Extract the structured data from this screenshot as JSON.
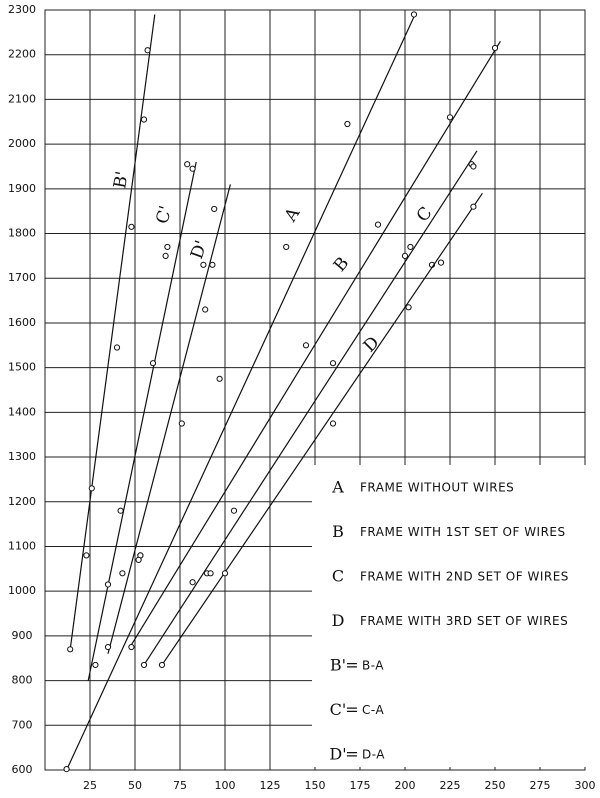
{
  "chart_data": {
    "type": "scatter",
    "xlim": [
      0,
      300
    ],
    "ylim": [
      600,
      2300
    ],
    "xticks": [
      25,
      50,
      75,
      100,
      125,
      150,
      175,
      200,
      225,
      250,
      275,
      300
    ],
    "yticks": [
      600,
      700,
      800,
      900,
      1000,
      1100,
      1200,
      1300,
      1400,
      1500,
      1600,
      1700,
      1800,
      1900,
      2000,
      2100,
      2200,
      2300
    ],
    "grid": true,
    "series": [
      {
        "name": "A",
        "description": "FRAME WITHOUT WIRES",
        "x": [
          12,
          53,
          97,
          134,
          168,
          205
        ],
        "values": [
          602,
          1080,
          1475,
          1770,
          2045,
          2290
        ],
        "line_x": [
          12,
          205
        ],
        "line_y": [
          600,
          2285
        ]
      },
      {
        "name": "B",
        "description": "FRAME WITH 1ST SET OF WIRES",
        "x": [
          48,
          53,
          105,
          145,
          160,
          185,
          225,
          250
        ],
        "values": [
          875,
          1080,
          1180,
          1550,
          1510,
          1820,
          2060,
          2215
        ],
        "line_x": [
          48,
          253
        ],
        "line_y": [
          880,
          2230
        ]
      },
      {
        "name": "C",
        "description": "FRAME WITH 2ND SET OF WIRES",
        "x": [
          55,
          82,
          90,
          200,
          203,
          215,
          220,
          237,
          238
        ],
        "values": [
          835,
          1020,
          1040,
          1750,
          1770,
          1730,
          1735,
          1955,
          1950
        ],
        "line_x": [
          55,
          240
        ],
        "line_y": [
          835,
          1985
        ]
      },
      {
        "name": "D",
        "description": "FRAME WITH 3RD SET OF WIRES",
        "x": [
          65,
          92,
          100,
          160,
          202,
          238
        ],
        "values": [
          835,
          1040,
          1040,
          1375,
          1635,
          1860
        ],
        "line_x": [
          65,
          243
        ],
        "line_y": [
          835,
          1890
        ]
      },
      {
        "name": "B'",
        "description": "B-A",
        "x": [
          14,
          26,
          23,
          40,
          48,
          55,
          57
        ],
        "values": [
          870,
          1230,
          1080,
          1545,
          1815,
          2055,
          2210
        ],
        "line_x": [
          14,
          61
        ],
        "line_y": [
          870,
          2290
        ]
      },
      {
        "name": "C'",
        "description": "C-A",
        "x": [
          28,
          35,
          42,
          52,
          67,
          68,
          79,
          82
        ],
        "values": [
          835,
          1015,
          1180,
          1070,
          1750,
          1770,
          1955,
          1945
        ],
        "line_x": [
          24,
          84
        ],
        "line_y": [
          800,
          1960
        ]
      },
      {
        "name": "D'",
        "description": "D-A",
        "x": [
          35,
          43,
          60,
          76,
          89,
          88,
          94,
          93
        ],
        "values": [
          875,
          1040,
          1510,
          1375,
          1630,
          1730,
          1855,
          1730
        ],
        "line_x": [
          35,
          103
        ],
        "line_y": [
          860,
          1910
        ]
      }
    ]
  }
}
